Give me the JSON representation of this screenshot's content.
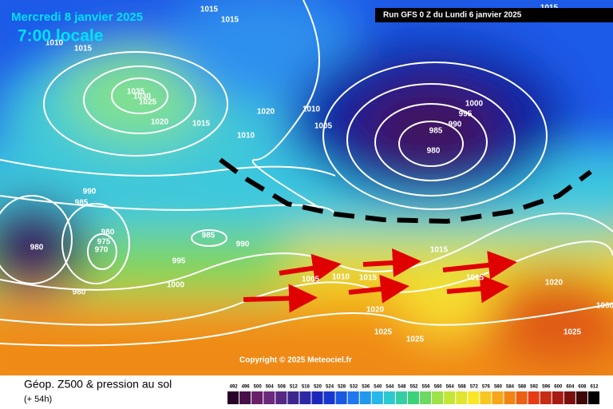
{
  "header": {
    "date": "Mercredi 8 janvier 2025",
    "time": "7:00 locale",
    "run": "Run GFS 0 Z du Lundi 6 janvier 2025"
  },
  "isobar_labels": [
    1015,
    1015,
    1010,
    1015,
    1035,
    1030,
    1025,
    1020,
    1015,
    1020,
    1010,
    1005,
    1010,
    1000,
    995,
    990,
    985,
    980,
    990,
    985,
    980,
    975,
    970,
    980,
    985,
    990,
    995,
    1000,
    980,
    1005,
    1010,
    1015,
    1015,
    1015,
    1020,
    1020,
    1025,
    1025,
    1025,
    1030,
    1015
  ],
  "copyright": "Copyright © 2025 Meteociel.fr",
  "footer": {
    "title": "Géop. Z500 & pression au sol",
    "lead": "(+ 54h)"
  },
  "legend": {
    "values": [
      492,
      496,
      500,
      504,
      508,
      512,
      516,
      520,
      524,
      528,
      532,
      536,
      540,
      544,
      548,
      552,
      556,
      560,
      564,
      568,
      572,
      576,
      580,
      584,
      588,
      592,
      596,
      600,
      604,
      608,
      612
    ]
  }
}
